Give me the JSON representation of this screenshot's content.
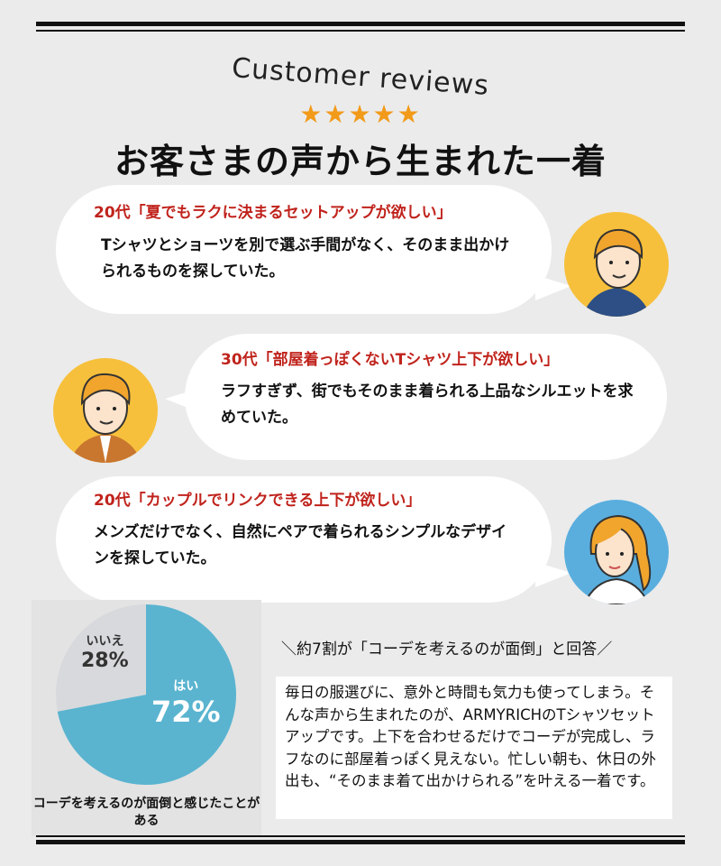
{
  "header": {
    "subtitle": "Customer reviews",
    "stars": "★★★★★",
    "rating": 5,
    "title": "お客さまの声から生まれた一着"
  },
  "reviews": [
    {
      "quote": "20代「夏でもラクに決まるセットアップが欲しい」",
      "text": "Tシャツとショーツを別で選ぶ手間がなく、そのまま出かけられるものを探していた。",
      "avatar": "man-avatar-icon",
      "avatar_color": "#f7c03c"
    },
    {
      "quote": "30代「部屋着っぽくないTシャツ上下が欲しい」",
      "text": "ラフすぎず、街でもそのまま着られる上品なシルエットを求めていた。",
      "avatar": "man-avatar-icon",
      "avatar_color": "#f7c03c"
    },
    {
      "quote": "20代「カップルでリンクできる上下が欲しい」",
      "text": "メンズだけでなく、自然にペアで着られるシンプルなデザインを探していた。",
      "avatar": "woman-avatar-icon",
      "avatar_color": "#5aaede"
    }
  ],
  "chart_data": {
    "type": "pie",
    "title": "",
    "caption": "コーデを考えるのが面倒と感じたことがある",
    "slices": [
      {
        "label": "はい",
        "value": 72,
        "display": "72%",
        "color": "#5ab4d0"
      },
      {
        "label": "いいえ",
        "value": 28,
        "display": "28%",
        "color": "#d8d9dc"
      }
    ]
  },
  "summary": {
    "headline": "＼約7割が「コーデを考えるのが面倒」と回答／",
    "text": "毎日の服選びに、意外と時間も気力も使ってしまう。そんな声から生まれたのが、ARMYRICHのTシャツセットアップです。上下を合わせるだけでコーデが完成し、ラフなのに部屋着っぽく見えない。忙しい朝も、休日の外出も、“そのまま着て出かけられる”を叶える一着です。"
  }
}
